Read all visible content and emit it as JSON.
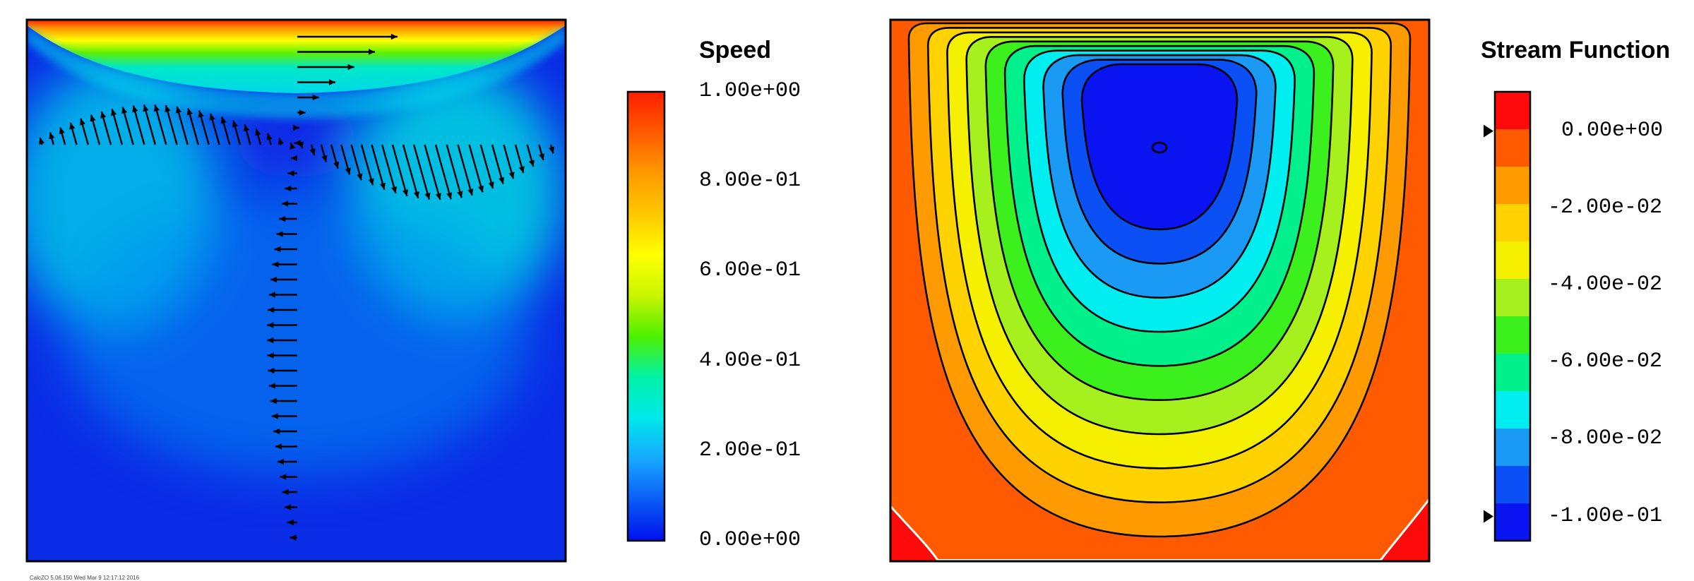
{
  "chart_data": [
    {
      "type": "heatmap",
      "subtype": "filled contour with velocity vectors",
      "title": "Speed",
      "colormap": [
        "#0010ee",
        "#0b5cf5",
        "#17a8ff",
        "#00e8ea",
        "#00f2a8",
        "#4cf000",
        "#c8f500",
        "#ffff00",
        "#ffc800",
        "#ff9a00",
        "#ff5a00",
        "#ff1e00"
      ],
      "colorbar": {
        "min": 0.0,
        "max": 1.0,
        "ticks": [
          "1.00e+00",
          "8.00e-01",
          "6.00e-01",
          "4.00e-01",
          "2.00e-01",
          "0.00e+00"
        ]
      },
      "grid": false,
      "vector_field": true
    },
    {
      "type": "heatmap",
      "subtype": "filled contour with contour lines",
      "title": "Stream Function",
      "levels": [
        -0.1,
        -0.09,
        -0.08,
        -0.07,
        -0.06,
        -0.05,
        -0.04,
        -0.03,
        -0.02,
        -0.01,
        0.0
      ],
      "level_colors": [
        "#0a14f0",
        "#0b50f5",
        "#1a9af5",
        "#00eef0",
        "#00f08c",
        "#3cf01e",
        "#a6f01e",
        "#f5f000",
        "#ffd200",
        "#ff9b00",
        "#ff5a00",
        "#ff0a0a"
      ],
      "colorbar": {
        "ticks": [
          "0.00e+00",
          "-2.00e-02",
          "-4.00e-02",
          "-6.00e-02",
          "-8.00e-02",
          "-1.00e-01"
        ],
        "markers": [
          "0.00e+00",
          "-1.00e-01"
        ]
      },
      "grid": false
    }
  ],
  "footer": {
    "stamp": "CalcZO 5.06.150 Wed Mar 9 12:17:12 2016"
  }
}
